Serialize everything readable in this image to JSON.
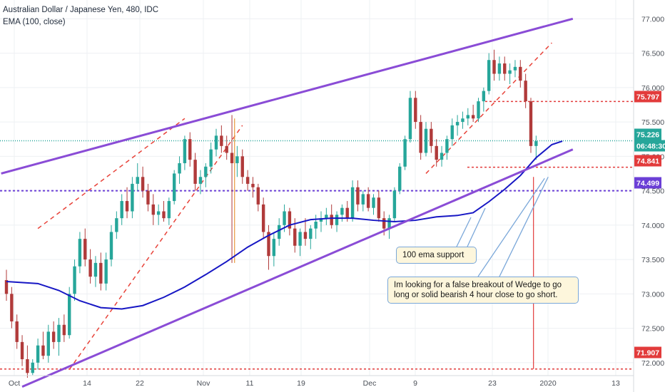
{
  "header": {
    "title": "Australian Dollar / Japanese Yen, 480, IDC",
    "indicator": "EMA (100, close)"
  },
  "colors": {
    "up": "#26a69a",
    "down": "#b03a3a",
    "ema": "#1717c4",
    "wedge": "#8a4cd6",
    "red_level": "#e23b3b",
    "purple_level": "#6b3fd6",
    "note_bg": "#fdf6dc",
    "note_border": "#7aa7d9"
  },
  "annotations": {
    "ema_note": "100 ema support",
    "strategy_note": "Im looking for a false breakout of Wedge to go long or solid bearish 4 hour close to go short."
  },
  "chart_data": {
    "type": "candlestick",
    "title": "Australian Dollar / Japanese Yen, 480, IDC",
    "xlabel": "",
    "ylabel": "",
    "ylim": [
      71.65,
      77.2
    ],
    "x_tick_labels": [
      "Oct",
      "14",
      "22",
      "Nov",
      "11",
      "19",
      "Dec",
      "9",
      "23",
      "2020",
      "13"
    ],
    "y_tick_labels": [
      "77.000",
      "76.500",
      "76.000",
      "75.500",
      "75.000",
      "74.500",
      "74.000",
      "73.500",
      "73.000",
      "72.500",
      "72.000"
    ],
    "price_labels": [
      {
        "text": "75.797",
        "value": 75.797,
        "color": "#e23b3b"
      },
      {
        "text": "75.226",
        "value": 75.226,
        "color": "#26a69a"
      },
      {
        "text": "06:48:30",
        "value": 75.1,
        "color": "#26a69a"
      },
      {
        "text": "74.841",
        "value": 74.841,
        "color": "#e23b3b"
      },
      {
        "text": "74.499",
        "value": 74.499,
        "color": "#6b3fd6"
      },
      {
        "text": "71.907",
        "value": 71.907,
        "color": "#e23b3b"
      }
    ],
    "horizontal_levels": [
      {
        "value": 75.797,
        "color": "#e23b3b"
      },
      {
        "value": 74.841,
        "color": "#e23b3b"
      },
      {
        "value": 74.499,
        "color": "#6b3fd6"
      },
      {
        "value": 71.907,
        "color": "#e23b3b"
      },
      {
        "value": 75.226,
        "color": "#26a69a"
      }
    ],
    "ohlc": [
      [
        73.2,
        73.35,
        72.9,
        73.0
      ],
      [
        73.0,
        73.1,
        72.5,
        72.6
      ],
      [
        72.6,
        72.7,
        72.2,
        72.3
      ],
      [
        72.3,
        72.4,
        71.95,
        72.05
      ],
      [
        72.05,
        72.25,
        71.78,
        71.85
      ],
      [
        71.85,
        72.05,
        71.82,
        72.0
      ],
      [
        72.0,
        72.35,
        71.9,
        72.25
      ],
      [
        72.25,
        72.45,
        72.05,
        72.1
      ],
      [
        72.1,
        72.55,
        72.0,
        72.45
      ],
      [
        72.45,
        72.6,
        72.2,
        72.3
      ],
      [
        72.3,
        72.65,
        72.1,
        72.55
      ],
      [
        72.55,
        72.7,
        72.3,
        72.4
      ],
      [
        72.4,
        73.1,
        72.35,
        73.0
      ],
      [
        73.0,
        73.5,
        72.9,
        73.4
      ],
      [
        73.4,
        73.9,
        73.3,
        73.8
      ],
      [
        73.8,
        73.95,
        73.4,
        73.5
      ],
      [
        73.5,
        73.65,
        73.15,
        73.25
      ],
      [
        73.25,
        73.55,
        73.1,
        73.45
      ],
      [
        73.45,
        73.6,
        73.05,
        73.15
      ],
      [
        73.15,
        73.6,
        73.05,
        73.5
      ],
      [
        73.5,
        74.0,
        73.4,
        73.9
      ],
      [
        73.9,
        74.2,
        73.8,
        74.1
      ],
      [
        74.1,
        74.45,
        74.0,
        74.35
      ],
      [
        74.35,
        74.55,
        74.1,
        74.2
      ],
      [
        74.2,
        74.7,
        74.1,
        74.6
      ],
      [
        74.6,
        74.9,
        74.5,
        74.7
      ],
      [
        74.7,
        74.85,
        74.4,
        74.5
      ],
      [
        74.5,
        74.6,
        74.2,
        74.3
      ],
      [
        74.3,
        74.45,
        74.0,
        74.15
      ],
      [
        74.15,
        74.3,
        74.0,
        74.2
      ],
      [
        74.2,
        74.35,
        74.05,
        74.1
      ],
      [
        74.1,
        74.4,
        74.0,
        74.35
      ],
      [
        74.35,
        74.8,
        74.3,
        74.75
      ],
      [
        74.75,
        75.0,
        74.6,
        74.9
      ],
      [
        74.9,
        75.3,
        74.8,
        75.25
      ],
      [
        75.25,
        75.35,
        74.85,
        74.95
      ],
      [
        74.95,
        75.05,
        74.5,
        74.6
      ],
      [
        74.6,
        74.8,
        74.45,
        74.7
      ],
      [
        74.7,
        74.9,
        74.55,
        74.85
      ],
      [
        74.85,
        75.2,
        74.75,
        75.1
      ],
      [
        75.1,
        75.4,
        75.0,
        75.3
      ],
      [
        75.3,
        75.45,
        75.05,
        75.15
      ],
      [
        75.15,
        75.3,
        74.95,
        75.05
      ],
      [
        75.05,
        75.6,
        73.45,
        74.9
      ],
      [
        74.9,
        75.15,
        74.7,
        75.0
      ],
      [
        75.0,
        75.1,
        74.6,
        74.7
      ],
      [
        74.7,
        74.8,
        74.5,
        74.6
      ],
      [
        74.6,
        74.7,
        74.4,
        74.55
      ],
      [
        74.55,
        74.6,
        74.2,
        74.3
      ],
      [
        74.3,
        74.4,
        73.8,
        73.9
      ],
      [
        73.9,
        74.0,
        73.35,
        73.55
      ],
      [
        73.55,
        73.9,
        73.4,
        73.8
      ],
      [
        73.8,
        74.1,
        73.7,
        74.0
      ],
      [
        74.0,
        74.3,
        73.9,
        74.2
      ],
      [
        74.2,
        74.25,
        73.85,
        73.95
      ],
      [
        73.95,
        74.1,
        73.6,
        73.7
      ],
      [
        73.7,
        73.95,
        73.55,
        73.9
      ],
      [
        73.9,
        74.1,
        73.7,
        73.8
      ],
      [
        73.8,
        74.0,
        73.65,
        73.95
      ],
      [
        73.95,
        74.15,
        73.8,
        74.05
      ],
      [
        74.05,
        74.2,
        73.9,
        74.1
      ],
      [
        74.1,
        74.25,
        74.0,
        74.15
      ],
      [
        74.15,
        74.3,
        73.95,
        74.0
      ],
      [
        74.0,
        74.2,
        73.9,
        74.15
      ],
      [
        74.15,
        74.3,
        74.05,
        74.25
      ],
      [
        74.25,
        74.35,
        74.05,
        74.1
      ],
      [
        74.1,
        74.65,
        74.05,
        74.55
      ],
      [
        74.55,
        74.65,
        74.2,
        74.3
      ],
      [
        74.3,
        74.5,
        74.2,
        74.45
      ],
      [
        74.45,
        74.55,
        74.2,
        74.25
      ],
      [
        74.25,
        74.45,
        74.15,
        74.4
      ],
      [
        74.4,
        74.5,
        74.05,
        74.1
      ],
      [
        74.1,
        74.2,
        73.85,
        73.95
      ],
      [
        73.95,
        74.15,
        73.8,
        74.1
      ],
      [
        74.1,
        74.55,
        74.05,
        74.5
      ],
      [
        74.5,
        74.9,
        74.45,
        74.85
      ],
      [
        74.85,
        75.3,
        74.8,
        75.25
      ],
      [
        75.25,
        75.95,
        75.2,
        75.85
      ],
      [
        75.85,
        75.95,
        75.4,
        75.5
      ],
      [
        75.5,
        75.6,
        74.95,
        75.05
      ],
      [
        75.05,
        75.5,
        75.0,
        75.4
      ],
      [
        75.4,
        75.5,
        75.05,
        75.15
      ],
      [
        75.15,
        75.25,
        74.85,
        74.95
      ],
      [
        74.95,
        75.15,
        74.85,
        75.05
      ],
      [
        75.05,
        75.3,
        74.95,
        75.25
      ],
      [
        75.25,
        75.55,
        75.15,
        75.45
      ],
      [
        75.45,
        75.6,
        75.3,
        75.5
      ],
      [
        75.5,
        75.65,
        75.4,
        75.55
      ],
      [
        75.55,
        75.7,
        75.45,
        75.6
      ],
      [
        75.6,
        75.75,
        75.5,
        75.55
      ],
      [
        75.55,
        75.85,
        75.5,
        75.8
      ],
      [
        75.8,
        76.0,
        75.65,
        75.95
      ],
      [
        75.95,
        76.5,
        75.9,
        76.4
      ],
      [
        76.4,
        76.55,
        76.1,
        76.2
      ],
      [
        76.2,
        76.45,
        76.1,
        76.35
      ],
      [
        76.35,
        76.45,
        76.1,
        76.2
      ],
      [
        76.2,
        76.35,
        76.05,
        76.25
      ],
      [
        76.25,
        76.4,
        76.15,
        76.3
      ],
      [
        76.3,
        76.4,
        76.0,
        76.1
      ],
      [
        76.1,
        76.2,
        75.7,
        75.8
      ],
      [
        75.8,
        75.85,
        75.05,
        75.15
      ],
      [
        75.15,
        75.3,
        74.95,
        75.22
      ]
    ],
    "ema_100": [
      [
        0,
        73.18
      ],
      [
        6,
        73.15
      ],
      [
        10,
        73.05
      ],
      [
        14,
        72.9
      ],
      [
        18,
        72.8
      ],
      [
        22,
        72.78
      ],
      [
        26,
        72.83
      ],
      [
        30,
        72.95
      ],
      [
        34,
        73.1
      ],
      [
        38,
        73.28
      ],
      [
        42,
        73.47
      ],
      [
        46,
        73.68
      ],
      [
        50,
        73.85
      ],
      [
        54,
        74.0
      ],
      [
        58,
        74.08
      ],
      [
        62,
        74.1
      ],
      [
        66,
        74.1
      ],
      [
        70,
        74.07
      ],
      [
        74,
        74.05
      ],
      [
        78,
        74.07
      ],
      [
        82,
        74.12
      ],
      [
        86,
        74.14
      ],
      [
        89,
        74.18
      ],
      [
        92,
        74.34
      ],
      [
        95,
        74.52
      ],
      [
        98,
        74.72
      ],
      [
        101,
        74.98
      ],
      [
        104,
        75.17
      ],
      [
        106,
        75.22
      ]
    ],
    "wedge_upper": [
      [
        -1,
        74.75
      ],
      [
        108,
        77.0
      ]
    ],
    "wedge_lower": [
      [
        3,
        71.65
      ],
      [
        108,
        75.1
      ]
    ],
    "channel_dashed": [
      [
        [
          6,
          73.95
        ],
        [
          34,
          75.55
        ]
      ],
      [
        [
          12,
          71.9
        ],
        [
          45,
          75.45
        ]
      ],
      [
        [
          80,
          74.75
        ],
        [
          104,
          76.65
        ]
      ]
    ],
    "vertical_markers": [
      {
        "x": 43.5,
        "from": 73.45,
        "to": 75.55,
        "color": "#e89a3c"
      },
      {
        "x": 100.5,
        "from": 71.907,
        "to": 74.7,
        "color": "#e23b3b"
      }
    ],
    "grid": true,
    "legend": "top-left"
  }
}
